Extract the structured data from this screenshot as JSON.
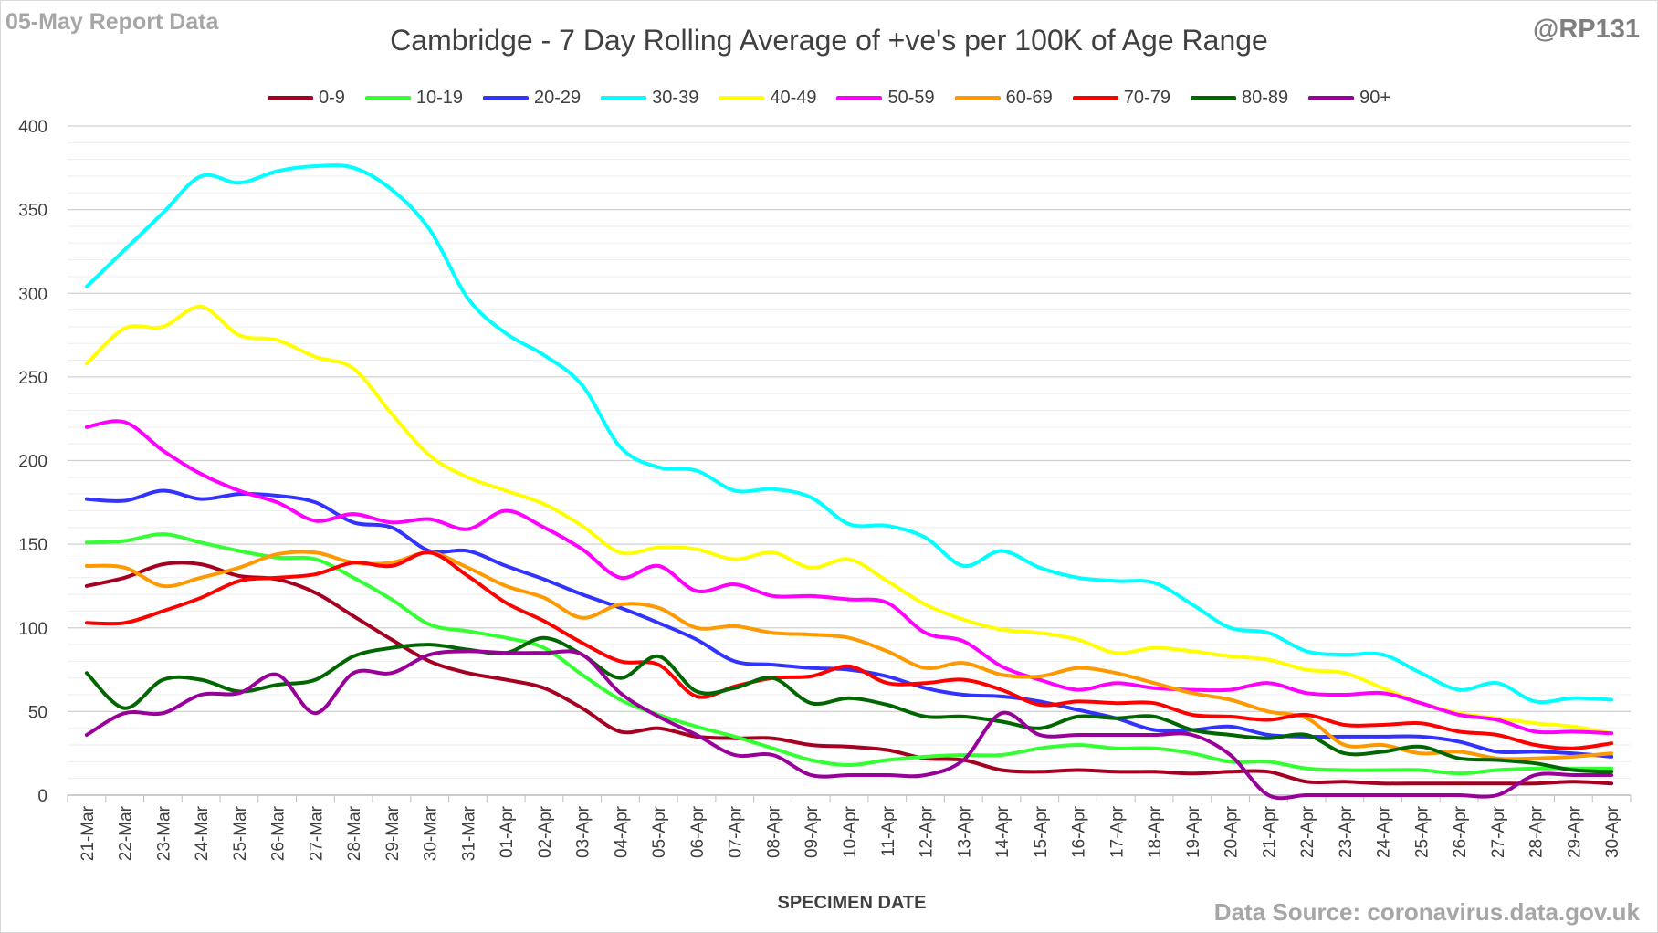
{
  "header": {
    "report_label": "05-May Report Data",
    "handle": "@RP131",
    "title": "Cambridge - 7 Day Rolling Average of +ve's per 100K of Age Range",
    "source": "Data Source: coronavirus.data.gov.uk"
  },
  "chart_data": {
    "type": "line",
    "title": "Cambridge - 7 Day Rolling Average of +ve's per 100K of Age Range",
    "xlabel": "SPECIMEN DATE",
    "ylabel": "",
    "ylim": [
      0,
      400
    ],
    "yticks": [
      0,
      50,
      100,
      150,
      200,
      250,
      300,
      350,
      400
    ],
    "grid": true,
    "legend_position": "top",
    "x": [
      "21-Mar",
      "22-Mar",
      "23-Mar",
      "24-Mar",
      "25-Mar",
      "26-Mar",
      "27-Mar",
      "28-Mar",
      "29-Mar",
      "30-Mar",
      "31-Mar",
      "01-Apr",
      "02-Apr",
      "03-Apr",
      "04-Apr",
      "05-Apr",
      "06-Apr",
      "07-Apr",
      "08-Apr",
      "09-Apr",
      "10-Apr",
      "11-Apr",
      "12-Apr",
      "13-Apr",
      "14-Apr",
      "15-Apr",
      "16-Apr",
      "17-Apr",
      "18-Apr",
      "19-Apr",
      "20-Apr",
      "21-Apr",
      "22-Apr",
      "23-Apr",
      "24-Apr",
      "25-Apr",
      "26-Apr",
      "27-Apr",
      "28-Apr",
      "29-Apr",
      "30-Apr"
    ],
    "series": [
      {
        "name": "0-9",
        "color": "#a50021",
        "values": [
          125,
          130,
          138,
          138,
          131,
          129,
          121,
          107,
          93,
          80,
          73,
          69,
          64,
          52,
          38,
          40,
          35,
          34,
          34,
          30,
          29,
          27,
          22,
          21,
          15,
          14,
          15,
          14,
          14,
          13,
          14,
          14,
          8,
          8,
          7,
          7,
          7,
          7,
          7,
          8,
          7
        ]
      },
      {
        "name": "10-19",
        "color": "#33ff33",
        "values": [
          151,
          152,
          156,
          151,
          146,
          142,
          141,
          130,
          117,
          102,
          98,
          94,
          88,
          72,
          57,
          48,
          41,
          35,
          28,
          21,
          18,
          21,
          23,
          24,
          24,
          28,
          30,
          28,
          28,
          25,
          20,
          20,
          16,
          15,
          15,
          15,
          13,
          15,
          16,
          16,
          16
        ]
      },
      {
        "name": "20-29",
        "color": "#3333ff",
        "values": [
          177,
          176,
          182,
          177,
          180,
          179,
          175,
          163,
          160,
          146,
          146,
          137,
          129,
          120,
          112,
          103,
          93,
          80,
          78,
          76,
          75,
          71,
          64,
          60,
          59,
          56,
          51,
          46,
          39,
          39,
          41,
          36,
          35,
          35,
          35,
          35,
          32,
          26,
          26,
          25,
          23
        ]
      },
      {
        "name": "30-39",
        "color": "#00ffff",
        "values": [
          304,
          326,
          348,
          370,
          366,
          373,
          376,
          375,
          362,
          338,
          297,
          276,
          263,
          245,
          208,
          196,
          194,
          182,
          183,
          178,
          162,
          161,
          154,
          137,
          146,
          136,
          130,
          128,
          127,
          114,
          100,
          97,
          86,
          84,
          84,
          73,
          63,
          67,
          56,
          58,
          57
        ]
      },
      {
        "name": "40-49",
        "color": "#ffff00",
        "values": [
          258,
          279,
          280,
          292,
          275,
          272,
          262,
          255,
          228,
          203,
          190,
          182,
          174,
          161,
          145,
          148,
          147,
          141,
          145,
          136,
          141,
          128,
          114,
          105,
          99,
          97,
          93,
          85,
          88,
          86,
          83,
          81,
          75,
          73,
          64,
          55,
          49,
          46,
          43,
          41,
          37
        ]
      },
      {
        "name": "50-59",
        "color": "#ff00ff",
        "values": [
          220,
          223,
          206,
          192,
          182,
          175,
          164,
          168,
          163,
          165,
          159,
          170,
          160,
          147,
          130,
          137,
          122,
          126,
          119,
          119,
          117,
          115,
          97,
          92,
          77,
          69,
          63,
          67,
          64,
          63,
          63,
          67,
          61,
          60,
          61,
          55,
          48,
          45,
          38,
          38,
          37
        ]
      },
      {
        "name": "60-69",
        "color": "#ff9900",
        "values": [
          137,
          136,
          125,
          130,
          136,
          144,
          145,
          139,
          139,
          145,
          136,
          125,
          118,
          106,
          114,
          112,
          100,
          101,
          97,
          96,
          94,
          86,
          76,
          79,
          72,
          71,
          76,
          73,
          67,
          61,
          57,
          50,
          46,
          30,
          30,
          25,
          26,
          22,
          22,
          23,
          25
        ]
      },
      {
        "name": "70-79",
        "color": "#ff0000",
        "values": [
          103,
          103,
          110,
          118,
          128,
          130,
          132,
          139,
          137,
          145,
          131,
          115,
          104,
          91,
          80,
          78,
          59,
          65,
          70,
          71,
          77,
          67,
          67,
          69,
          63,
          54,
          56,
          55,
          55,
          48,
          47,
          45,
          48,
          42,
          42,
          43,
          38,
          36,
          30,
          28,
          31
        ]
      },
      {
        "name": "80-89",
        "color": "#006600",
        "values": [
          73,
          52,
          69,
          69,
          62,
          66,
          69,
          83,
          88,
          90,
          87,
          85,
          94,
          84,
          70,
          83,
          62,
          64,
          70,
          55,
          58,
          54,
          47,
          47,
          44,
          40,
          47,
          46,
          47,
          39,
          36,
          34,
          36,
          25,
          26,
          29,
          22,
          21,
          19,
          15,
          14
        ]
      },
      {
        "name": "90+",
        "color": "#990099",
        "values": [
          36,
          49,
          49,
          60,
          61,
          72,
          49,
          73,
          73,
          84,
          86,
          85,
          85,
          84,
          61,
          47,
          36,
          24,
          24,
          12,
          12,
          12,
          12,
          21,
          49,
          36,
          36,
          36,
          36,
          36,
          24,
          0,
          0,
          0,
          0,
          0,
          0,
          0,
          12,
          12,
          12
        ]
      }
    ]
  }
}
